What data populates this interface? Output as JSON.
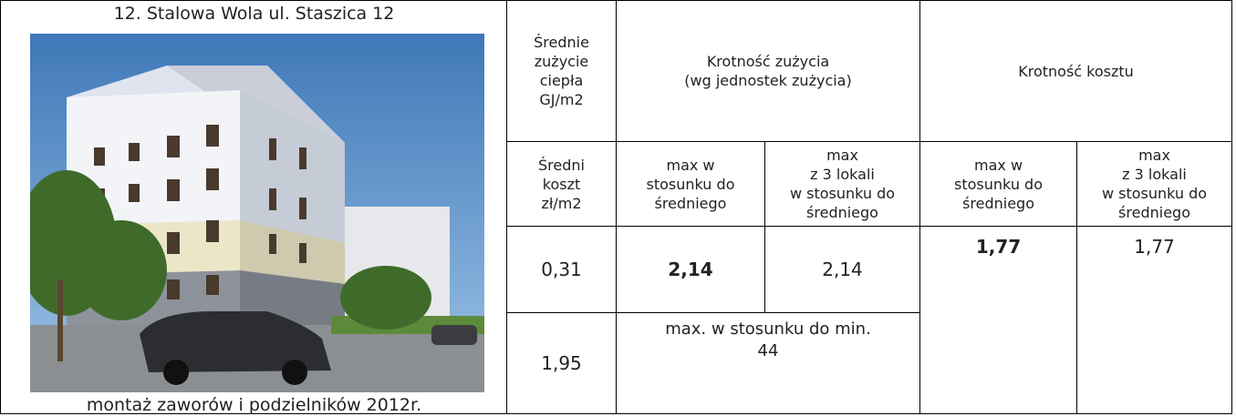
{
  "image_panel": {
    "title": "12. Stalowa Wola ul. Staszica 12",
    "caption": "montaż zaworów i podzielników 2012r."
  },
  "table": {
    "rows": [
      [
        "Średnie\nzużycie\nciepła\nGJ/m2",
        "Krotność zużycia\n(wg jednostek zużycia)",
        "Krotność  kosztu"
      ],
      [
        "Średni\nkoszt\nzł/m2",
        "max w\nstosunku do\nśredniego",
        "max\nz 3 lokali\nw stosunku do\nśredniego",
        "max w\nstosunku do\nśredniego",
        "max\nz 3 lokali\nw stosunku do\nśredniego"
      ],
      [
        "0,31",
        "2,14",
        "2,14",
        "1,77",
        "1,77"
      ],
      [
        "1,95",
        "max. w stosunku do min.\n44"
      ]
    ]
  }
}
